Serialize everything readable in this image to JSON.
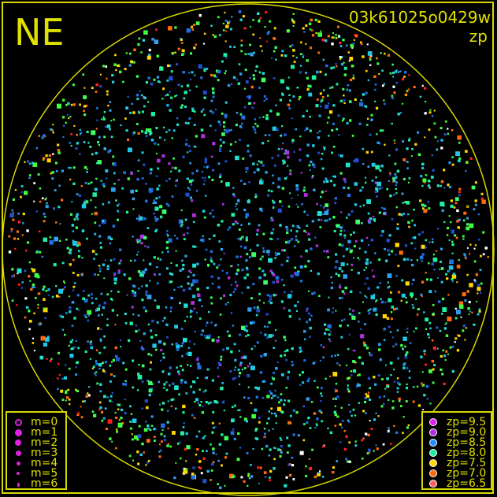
{
  "chart_data": {
    "type": "scatter",
    "title": "03k61025o0429w",
    "region_label": "NE",
    "color_quantity": "zp",
    "frame_color": "#d8d800",
    "background": "#000000",
    "legend_magnitude": [
      {
        "label": "m=0",
        "hollow": true
      },
      {
        "label": "m=1"
      },
      {
        "label": "m=2"
      },
      {
        "label": "m=3"
      },
      {
        "label": "m=4"
      },
      {
        "label": "m=5"
      },
      {
        "label": "m=6"
      }
    ],
    "legend_zp": [
      {
        "label": "zp=9.5",
        "color": "#e020f0"
      },
      {
        "label": "zp=9.0",
        "color": "#b030e0"
      },
      {
        "label": "zp=8.5",
        "color": "#2090ff"
      },
      {
        "label": "zp=8.0",
        "color": "#20f0a0"
      },
      {
        "label": "zp=7.5",
        "color": "#ffd800"
      },
      {
        "label": "zp=7.0",
        "color": "#ff6a10"
      },
      {
        "label": "zp=6.5",
        "color": "#ff6060"
      }
    ],
    "legend_placement": [
      "bottom-left",
      "bottom-right"
    ],
    "symbol_color": "#e020e0"
  }
}
